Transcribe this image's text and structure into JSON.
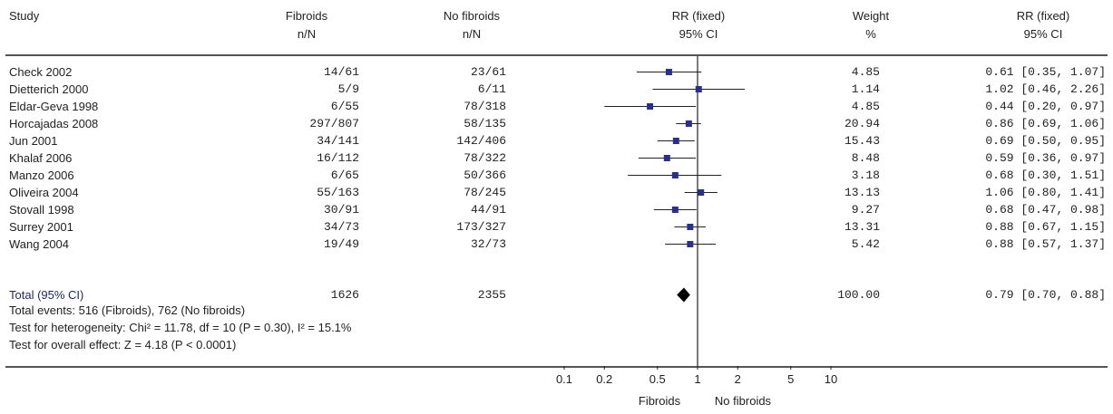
{
  "headers": {
    "study": "Study",
    "fibroids": [
      "Fibroids",
      "n/N"
    ],
    "no_fibroids": [
      "No fibroids",
      "n/N"
    ],
    "rr_plot": [
      "RR (fixed)",
      "95% CI"
    ],
    "weight": [
      "Weight",
      "%"
    ],
    "rr_text": [
      "RR (fixed)",
      "95% CI"
    ]
  },
  "chart_data": {
    "type": "forest",
    "x_scale": "log",
    "xlim": [
      0.1,
      10
    ],
    "xticks": [
      "0.1",
      "0.2",
      "0.5",
      "1",
      "2",
      "5",
      "10"
    ],
    "xtick_values": [
      0.1,
      0.2,
      0.5,
      1,
      2,
      5,
      10
    ],
    "xlabel_left": "Fibroids",
    "xlabel_right": "No fibroids",
    "marker_color": "#2a2f8f",
    "studies": [
      {
        "study": "Check 2002",
        "fibroids": "14/61",
        "no_fibroids": "23/61",
        "weight": "4.85",
        "ci_text": "0.61 [0.35, 1.07]",
        "rr": 0.61,
        "low": 0.35,
        "high": 1.07
      },
      {
        "study": "Dietterich 2000",
        "fibroids": "5/9",
        "no_fibroids": "6/11",
        "weight": "1.14",
        "ci_text": "1.02 [0.46, 2.26]",
        "rr": 1.02,
        "low": 0.46,
        "high": 2.26
      },
      {
        "study": "Eldar-Geva 1998",
        "fibroids": "6/55",
        "no_fibroids": "78/318",
        "weight": "4.85",
        "ci_text": "0.44 [0.20, 0.97]",
        "rr": 0.44,
        "low": 0.2,
        "high": 0.97
      },
      {
        "study": "Horcajadas 2008",
        "fibroids": "297/807",
        "no_fibroids": "58/135",
        "weight": "20.94",
        "ci_text": "0.86 [0.69, 1.06]",
        "rr": 0.86,
        "low": 0.69,
        "high": 1.06
      },
      {
        "study": "Jun 2001",
        "fibroids": "34/141",
        "no_fibroids": "142/406",
        "weight": "15.43",
        "ci_text": "0.69 [0.50, 0.95]",
        "rr": 0.69,
        "low": 0.5,
        "high": 0.95
      },
      {
        "study": "Khalaf 2006",
        "fibroids": "16/112",
        "no_fibroids": "78/322",
        "weight": "8.48",
        "ci_text": "0.59 [0.36, 0.97]",
        "rr": 0.59,
        "low": 0.36,
        "high": 0.97
      },
      {
        "study": "Manzo 2006",
        "fibroids": "6/65",
        "no_fibroids": "50/366",
        "weight": "3.18",
        "ci_text": "0.68 [0.30, 1.51]",
        "rr": 0.68,
        "low": 0.3,
        "high": 1.51
      },
      {
        "study": "Oliveira 2004",
        "fibroids": "55/163",
        "no_fibroids": "78/245",
        "weight": "13.13",
        "ci_text": "1.06 [0.80, 1.41]",
        "rr": 1.06,
        "low": 0.8,
        "high": 1.41
      },
      {
        "study": "Stovall 1998",
        "fibroids": "30/91",
        "no_fibroids": "44/91",
        "weight": "9.27",
        "ci_text": "0.68 [0.47, 0.98]",
        "rr": 0.68,
        "low": 0.47,
        "high": 0.98
      },
      {
        "study": "Surrey 2001",
        "fibroids": "34/73",
        "no_fibroids": "173/327",
        "weight": "13.31",
        "ci_text": "0.88 [0.67, 1.15]",
        "rr": 0.88,
        "low": 0.67,
        "high": 1.15
      },
      {
        "study": "Wang 2004",
        "fibroids": "19/49",
        "no_fibroids": "32/73",
        "weight": "5.42",
        "ci_text": "0.88 [0.57, 1.37]",
        "rr": 0.88,
        "low": 0.57,
        "high": 1.37
      }
    ],
    "total": {
      "label": "Total (95% CI)",
      "fibroids": "1626",
      "no_fibroids": "2355",
      "weight": "100.00",
      "ci_text": "0.79 [0.70, 0.88]",
      "rr": 0.79,
      "low": 0.7,
      "high": 0.88
    },
    "footer": {
      "total_events": "Total events: 516 (Fibroids), 762 (No fibroids)",
      "heterogeneity": "Test for heterogeneity: Chi² = 11.78, df = 10 (P = 0.30), I² = 15.1%",
      "overall_effect": "Test for overall effect: Z = 4.18 (P < 0.0001)"
    }
  }
}
